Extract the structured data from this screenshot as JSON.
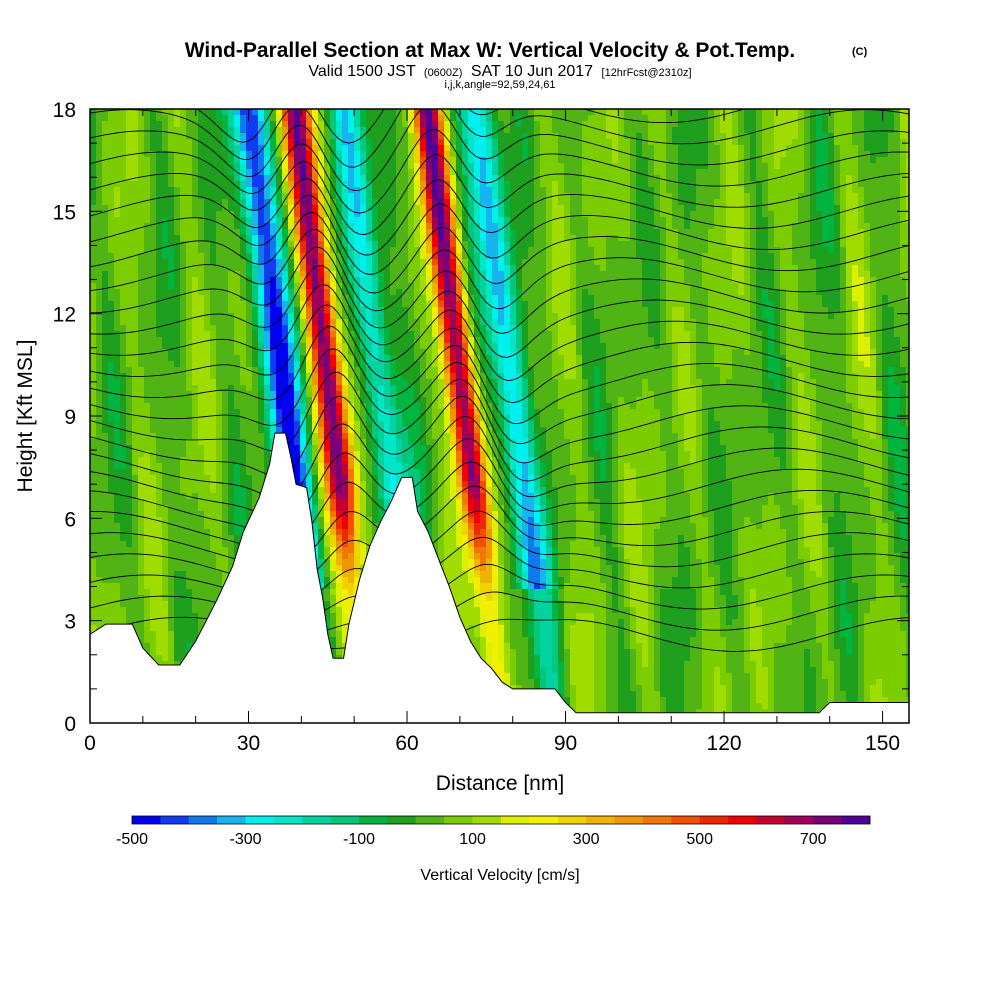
{
  "chart_data": {
    "type": "heatmap",
    "title_main": "Wind-Parallel Section at Max W: Vertical Velocity & Pot.Temp.",
    "title_mark": "(C)",
    "subtitle_pre": "Valid 1500 JST",
    "subtitle_utc": "(0600Z)",
    "subtitle_date": "SAT 10 Jun 2017",
    "subtitle_fcst": "[12hrFcst@2310z]",
    "subtitle2": "i,j,k,angle=92,59,24,61",
    "xlabel": "Distance [nm]",
    "ylabel": "Height [Kft MSL]",
    "xlim": [
      0,
      155
    ],
    "ylim": [
      0,
      18
    ],
    "xticks": [
      "0",
      "30",
      "60",
      "90",
      "120",
      "150"
    ],
    "yticks": [
      "0",
      "3",
      "6",
      "9",
      "12",
      "15",
      "18"
    ],
    "colorbar": {
      "label": "Vertical Velocity [cm/s]",
      "min": -500,
      "max": 750,
      "step": 50,
      "tick_labels": [
        "-500",
        "-300",
        "-100",
        "100",
        "300",
        "500",
        "700"
      ],
      "colors": [
        "#0000f0",
        "#0f3cf0",
        "#0f7af0",
        "#18b4f0",
        "#00f0f0",
        "#00e6c8",
        "#00d2a0",
        "#00c87a",
        "#00b440",
        "#1ea01e",
        "#50b414",
        "#7ccd00",
        "#a0dc00",
        "#dcf000",
        "#f0f000",
        "#f0d200",
        "#f0b400",
        "#f09600",
        "#f07800",
        "#f05000",
        "#f02800",
        "#f00000",
        "#c80032",
        "#a0005a",
        "#780078",
        "#500096"
      ]
    },
    "updrafts": [
      {
        "x": 46,
        "peak": 720
      },
      {
        "x": 71,
        "peak": 720
      }
    ],
    "downdrafts": [
      {
        "x": 37,
        "peak": -500
      },
      {
        "x": 56,
        "peak": -280
      },
      {
        "x": 80,
        "peak": -350
      }
    ],
    "terrain": [
      [
        0,
        2.6
      ],
      [
        3,
        2.9
      ],
      [
        8,
        2.9
      ],
      [
        10,
        2.2
      ],
      [
        13,
        1.7
      ],
      [
        17,
        1.7
      ],
      [
        20,
        2.4
      ],
      [
        24,
        3.6
      ],
      [
        27,
        4.6
      ],
      [
        29,
        5.6
      ],
      [
        32,
        6.6
      ],
      [
        34,
        7.6
      ],
      [
        35,
        8.5
      ],
      [
        37,
        8.5
      ],
      [
        38,
        7.8
      ],
      [
        39,
        7.0
      ],
      [
        41,
        6.9
      ],
      [
        42,
        5.9
      ],
      [
        43,
        4.5
      ],
      [
        44,
        3.7
      ],
      [
        45,
        2.6
      ],
      [
        46,
        1.9
      ],
      [
        48,
        1.9
      ],
      [
        49,
        2.9
      ],
      [
        51,
        4.2
      ],
      [
        53,
        5.2
      ],
      [
        55,
        5.9
      ],
      [
        57,
        6.5
      ],
      [
        59,
        7.2
      ],
      [
        61,
        7.2
      ],
      [
        62,
        6.2
      ],
      [
        64,
        5.6
      ],
      [
        66,
        4.8
      ],
      [
        68,
        4.0
      ],
      [
        70,
        3.1
      ],
      [
        72,
        2.4
      ],
      [
        74,
        1.9
      ],
      [
        76,
        1.6
      ],
      [
        78,
        1.2
      ],
      [
        80,
        1.0
      ],
      [
        82,
        1.0
      ],
      [
        85,
        1.0
      ],
      [
        88,
        1.0
      ],
      [
        90,
        0.6
      ],
      [
        92,
        0.3
      ],
      [
        95,
        0.3
      ],
      [
        100,
        0.3
      ],
      [
        110,
        0.3
      ],
      [
        120,
        0.3
      ],
      [
        125,
        0.3
      ],
      [
        130,
        0.3
      ],
      [
        138,
        0.3
      ],
      [
        140,
        0.6
      ],
      [
        155,
        0.6
      ]
    ]
  }
}
